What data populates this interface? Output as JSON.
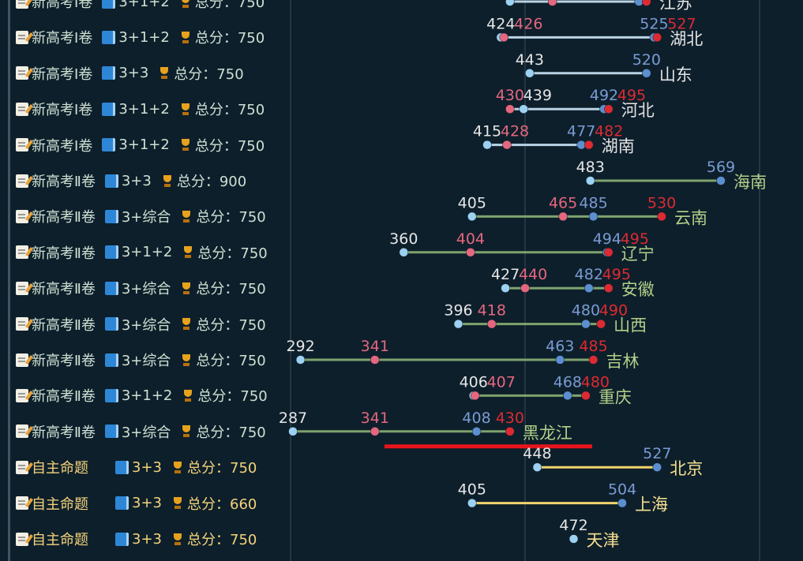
{
  "colors": {
    "background": "#0d1f2b",
    "gridline": "#3a4d5a",
    "label_new_exam": "#cfe0d2",
    "label_self": "#f5d37a",
    "score_text": "#e6e6e6",
    "dot_light_blue": "#9cd1f2",
    "dot_pink": "#e5677f",
    "dot_blue": "#5b8fcf",
    "dot_red": "#dd2a32",
    "text_pink": "#e5677f",
    "text_blue": "#7a9bd3",
    "text_red": "#dd2a32",
    "line_new1": "#b9d3e5",
    "line_new2": "#7fa36d",
    "line_self": "#f3d46d",
    "province_new1": "#e4e4e4",
    "province_new2": "#b3cf8a",
    "province_self": "#f5e08f",
    "highlight_underline": "#e8141b"
  },
  "chart_data": {
    "type": "dumbbell",
    "title": "",
    "xlabel": "",
    "ylabel": "",
    "xlim": [
      240,
      620
    ],
    "grid": true,
    "rows": [
      {
        "exam": "新高考Ⅰ卷",
        "subjects": "3+1+2",
        "score_label": "总分：750",
        "province": "江苏",
        "group": "new1",
        "points": [
          {
            "value": 430,
            "kind": "lightblue",
            "label": ""
          },
          {
            "value": 458,
            "kind": "pink",
            "label": ""
          },
          {
            "value": 515,
            "kind": "blue",
            "label": ""
          },
          {
            "value": 520,
            "kind": "red",
            "label": ""
          }
        ]
      },
      {
        "exam": "新高考Ⅰ卷",
        "subjects": "3+1+2",
        "score_label": "总分：750",
        "province": "湖北",
        "group": "new1",
        "points": [
          {
            "value": 424,
            "kind": "lightblue",
            "label": "424"
          },
          {
            "value": 426,
            "kind": "pink",
            "label": "426"
          },
          {
            "value": 525,
            "kind": "blue",
            "label": "525"
          },
          {
            "value": 527,
            "kind": "red",
            "label": "527"
          }
        ]
      },
      {
        "exam": "新高考Ⅰ卷",
        "subjects": "3+3",
        "score_label": "总分：750",
        "province": "山东",
        "group": "new1",
        "points": [
          {
            "value": 443,
            "kind": "lightblue",
            "label": "443"
          },
          {
            "value": 520,
            "kind": "blue",
            "label": "520"
          }
        ]
      },
      {
        "exam": "新高考Ⅰ卷",
        "subjects": "3+1+2",
        "score_label": "总分：750",
        "province": "河北",
        "group": "new1",
        "points": [
          {
            "value": 430,
            "kind": "pink",
            "label": "430"
          },
          {
            "value": 439,
            "kind": "lightblue",
            "label": "439"
          },
          {
            "value": 492,
            "kind": "blue",
            "label": "492"
          },
          {
            "value": 495,
            "kind": "red",
            "label": "495"
          }
        ]
      },
      {
        "exam": "新高考Ⅰ卷",
        "subjects": "3+1+2",
        "score_label": "总分：750",
        "province": "湖南",
        "group": "new1",
        "points": [
          {
            "value": 415,
            "kind": "lightblue",
            "label": "415"
          },
          {
            "value": 428,
            "kind": "pink",
            "label": "428"
          },
          {
            "value": 477,
            "kind": "blue",
            "label": "477"
          },
          {
            "value": 482,
            "kind": "red",
            "label": "482"
          }
        ]
      },
      {
        "exam": "新高考Ⅱ卷",
        "subjects": "3+3",
        "score_label": "总分：900",
        "province": "海南",
        "group": "new2",
        "points": [
          {
            "value": 483,
            "kind": "lightblue",
            "label": "483"
          },
          {
            "value": 569,
            "kind": "blue",
            "label": "569"
          }
        ]
      },
      {
        "exam": "新高考Ⅱ卷",
        "subjects": "3+综合",
        "score_label": "总分：750",
        "province": "云南",
        "group": "new2",
        "points": [
          {
            "value": 405,
            "kind": "lightblue",
            "label": "405"
          },
          {
            "value": 465,
            "kind": "pink",
            "label": "465"
          },
          {
            "value": 485,
            "kind": "blue",
            "label": "485"
          },
          {
            "value": 530,
            "kind": "red",
            "label": "530"
          }
        ]
      },
      {
        "exam": "新高考Ⅱ卷",
        "subjects": "3+1+2",
        "score_label": "总分：750",
        "province": "辽宁",
        "group": "new2",
        "points": [
          {
            "value": 360,
            "kind": "lightblue",
            "label": "360"
          },
          {
            "value": 404,
            "kind": "pink",
            "label": "404"
          },
          {
            "value": 494,
            "kind": "blue",
            "label": "494"
          },
          {
            "value": 495,
            "kind": "red",
            "label": "495"
          }
        ]
      },
      {
        "exam": "新高考Ⅱ卷",
        "subjects": "3+综合",
        "score_label": "总分：750",
        "province": "安徽",
        "group": "new2",
        "points": [
          {
            "value": 427,
            "kind": "lightblue",
            "label": "427"
          },
          {
            "value": 440,
            "kind": "pink",
            "label": "440"
          },
          {
            "value": 482,
            "kind": "blue",
            "label": "482"
          },
          {
            "value": 495,
            "kind": "red",
            "label": "495"
          }
        ]
      },
      {
        "exam": "新高考Ⅱ卷",
        "subjects": "3+综合",
        "score_label": "总分：750",
        "province": "山西",
        "group": "new2",
        "points": [
          {
            "value": 396,
            "kind": "lightblue",
            "label": "396"
          },
          {
            "value": 418,
            "kind": "pink",
            "label": "418"
          },
          {
            "value": 480,
            "kind": "blue",
            "label": "480"
          },
          {
            "value": 490,
            "kind": "red",
            "label": "490"
          }
        ]
      },
      {
        "exam": "新高考Ⅱ卷",
        "subjects": "3+综合",
        "score_label": "总分：750",
        "province": "吉林",
        "group": "new2",
        "points": [
          {
            "value": 292,
            "kind": "lightblue",
            "label": "292"
          },
          {
            "value": 341,
            "kind": "pink",
            "label": "341"
          },
          {
            "value": 463,
            "kind": "blue",
            "label": "463"
          },
          {
            "value": 485,
            "kind": "red",
            "label": "485"
          }
        ]
      },
      {
        "exam": "新高考Ⅱ卷",
        "subjects": "3+1+2",
        "score_label": "总分：750",
        "province": "重庆",
        "group": "new2",
        "points": [
          {
            "value": 406,
            "kind": "lightblue",
            "label": "406"
          },
          {
            "value": 407,
            "kind": "pink",
            "label": "407"
          },
          {
            "value": 468,
            "kind": "blue",
            "label": "468"
          },
          {
            "value": 480,
            "kind": "red",
            "label": "480"
          }
        ]
      },
      {
        "exam": "新高考Ⅱ卷",
        "subjects": "3+综合",
        "score_label": "总分：750",
        "province": "黑龙江",
        "group": "new2",
        "highlight": true,
        "points": [
          {
            "value": 287,
            "kind": "lightblue",
            "label": "287"
          },
          {
            "value": 341,
            "kind": "pink",
            "label": "341"
          },
          {
            "value": 408,
            "kind": "blue",
            "label": "408"
          },
          {
            "value": 430,
            "kind": "red",
            "label": "430"
          }
        ]
      },
      {
        "exam": "自主命题",
        "subjects": "3+3",
        "score_label": "总分：750",
        "province": "北京",
        "group": "self",
        "points": [
          {
            "value": 448,
            "kind": "lightblue",
            "label": "448"
          },
          {
            "value": 527,
            "kind": "blue",
            "label": "527"
          }
        ]
      },
      {
        "exam": "自主命题",
        "subjects": "3+3",
        "score_label": "总分：660",
        "province": "上海",
        "group": "self",
        "points": [
          {
            "value": 405,
            "kind": "lightblue",
            "label": "405"
          },
          {
            "value": 504,
            "kind": "blue",
            "label": "504"
          }
        ]
      },
      {
        "exam": "自主命题",
        "subjects": "3+3",
        "score_label": "总分：750",
        "province": "天津",
        "group": "self",
        "points": [
          {
            "value": 472,
            "kind": "lightblue",
            "label": "472"
          }
        ]
      }
    ]
  }
}
